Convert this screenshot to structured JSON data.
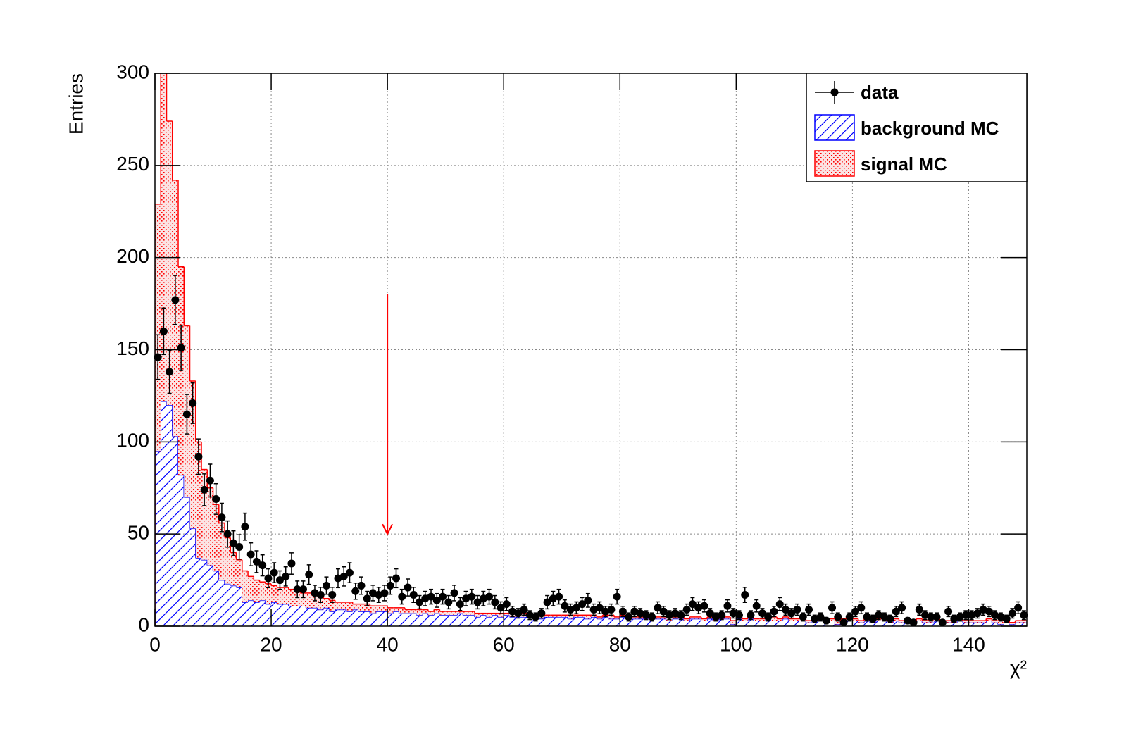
{
  "chart_data": {
    "type": "histogram",
    "x_label": "χ²",
    "y_label": "Entries",
    "xlim": [
      0,
      150
    ],
    "ylim": [
      0,
      300
    ],
    "xticks": [
      0,
      20,
      40,
      60,
      80,
      100,
      120,
      140
    ],
    "yticks": [
      0,
      50,
      100,
      150,
      200,
      250,
      300
    ],
    "grid": true,
    "legend": "top-right",
    "bins": [
      0,
      1,
      2,
      3,
      4,
      5,
      6,
      7,
      8,
      9,
      10,
      11,
      12,
      13,
      14,
      15,
      16,
      17,
      18,
      19,
      20,
      21,
      22,
      23,
      24,
      25,
      26,
      27,
      28,
      29,
      30,
      31,
      32,
      33,
      34,
      35,
      36,
      37,
      38,
      39,
      40,
      41,
      42,
      43,
      44,
      45,
      46,
      47,
      48,
      49,
      50,
      51,
      52,
      53,
      54,
      55,
      56,
      57,
      58,
      59,
      60,
      61,
      62,
      63,
      64,
      65,
      66,
      67,
      68,
      69,
      70,
      71,
      72,
      73,
      74,
      75,
      76,
      77,
      78,
      79,
      80,
      81,
      82,
      83,
      84,
      85,
      86,
      87,
      88,
      89,
      90,
      91,
      92,
      93,
      94,
      95,
      96,
      97,
      98,
      99,
      100,
      101,
      102,
      103,
      104,
      105,
      106,
      107,
      108,
      109,
      110,
      111,
      112,
      113,
      114,
      115,
      116,
      117,
      118,
      119,
      120,
      121,
      122,
      123,
      124,
      125,
      126,
      127,
      128,
      129,
      130,
      131,
      132,
      133,
      134,
      135,
      136,
      137,
      138,
      139,
      140,
      141,
      142,
      143,
      144,
      145,
      146,
      147,
      148,
      149,
      150
    ],
    "series": [
      {
        "name": "background MC",
        "color": "#0000ff",
        "fill": "hatch",
        "values": [
          95,
          122,
          120,
          103,
          82,
          70,
          53,
          37,
          36,
          33,
          30,
          25,
          23,
          22,
          21,
          13,
          14,
          13,
          14,
          12,
          13,
          12,
          12,
          11,
          11,
          11,
          10,
          10,
          9,
          10,
          8,
          9,
          9,
          8,
          9,
          8,
          8,
          7,
          8,
          8,
          7,
          8,
          7,
          7,
          7,
          6,
          7,
          6,
          7,
          6,
          6,
          6,
          7,
          6,
          6,
          5,
          6,
          5,
          6,
          5,
          6,
          5,
          5,
          5,
          5,
          5,
          4,
          5,
          5,
          5,
          5,
          4,
          5,
          5,
          4,
          5,
          4,
          5,
          4,
          4,
          5,
          4,
          4,
          4,
          4,
          4,
          4,
          4,
          3,
          4,
          4,
          3,
          4,
          4,
          3,
          4,
          3,
          4,
          4,
          1,
          4,
          3,
          4,
          3,
          3,
          4,
          3,
          3,
          4,
          3,
          3,
          3,
          2,
          3,
          3,
          3,
          3,
          1,
          3,
          3,
          3,
          2,
          3,
          2,
          3,
          3,
          2,
          3,
          2,
          3,
          2,
          3,
          2,
          2,
          3,
          1,
          2,
          2,
          3,
          2,
          2,
          2,
          2,
          3,
          2,
          1,
          2,
          1,
          2,
          2
        ]
      },
      {
        "name": "signal MC",
        "color": "#ff0000",
        "fill": "dots",
        "values": [
          134,
          258,
          154,
          139,
          113,
          93,
          80,
          63,
          49,
          42,
          36,
          31,
          25,
          18,
          15,
          17,
          13,
          12,
          10,
          11,
          9,
          9,
          9,
          9,
          8,
          7,
          8,
          7,
          7,
          5,
          6,
          4,
          4,
          5,
          3,
          4,
          4,
          4,
          3,
          3,
          3,
          2,
          3,
          2,
          2,
          3,
          2,
          2,
          2,
          2,
          2,
          2,
          1,
          2,
          2,
          2,
          1,
          2,
          1,
          2,
          1,
          2,
          1,
          2,
          1,
          1,
          2,
          1,
          1,
          1,
          1,
          2,
          1,
          1,
          2,
          1,
          1,
          1,
          2,
          1,
          1,
          1,
          1,
          1,
          1,
          1,
          1,
          1,
          2,
          1,
          1,
          1,
          1,
          1,
          1,
          1,
          1,
          1,
          1,
          2,
          1,
          1,
          1,
          1,
          1,
          1,
          2,
          1,
          1,
          1,
          1,
          1,
          1,
          1,
          1,
          1,
          1,
          2,
          1,
          1,
          1,
          1,
          1,
          1,
          1,
          1,
          1,
          1,
          1,
          1,
          1,
          1,
          1,
          2,
          1,
          1,
          1,
          1,
          1,
          1,
          1,
          1,
          1,
          1,
          1,
          2,
          1,
          1,
          1,
          1
        ]
      }
    ],
    "data": {
      "name": "data",
      "color": "#000000",
      "values": [
        146,
        160,
        138,
        177,
        151,
        115,
        121,
        92,
        74,
        79,
        69,
        59,
        50,
        45,
        43,
        54,
        39,
        35,
        33,
        26,
        29,
        25,
        27,
        34,
        20,
        20,
        28,
        18,
        17,
        22,
        17,
        26,
        27,
        29,
        19,
        22,
        15,
        18,
        17,
        18,
        22,
        26,
        16,
        21,
        17,
        13,
        15,
        16,
        14,
        16,
        13,
        18,
        12,
        15,
        16,
        13,
        15,
        16,
        13,
        10,
        12,
        8,
        7,
        9,
        6,
        5,
        7,
        13,
        15,
        16,
        11,
        9,
        10,
        12,
        14,
        9,
        10,
        8,
        9,
        16,
        8,
        5,
        8,
        7,
        6,
        5,
        10,
        8,
        6,
        7,
        6,
        9,
        12,
        10,
        11,
        7,
        5,
        6,
        11,
        7,
        6,
        17,
        6,
        11,
        7,
        5,
        8,
        12,
        9,
        7,
        9,
        5,
        9,
        4,
        5,
        3,
        10,
        5,
        2,
        5,
        8,
        10,
        5,
        4,
        6,
        5,
        4,
        8,
        10,
        3,
        2,
        9,
        6,
        5,
        5,
        2,
        8,
        4,
        5,
        6,
        6,
        7,
        9,
        8,
        6,
        5,
        4,
        7,
        10,
        6
      ],
      "errors": [
        12.1,
        12.6,
        11.7,
        13.3,
        12.3,
        10.7,
        11,
        9.6,
        8.6,
        8.9,
        8.3,
        7.7,
        7.1,
        6.7,
        6.6,
        7.3,
        6.2,
        5.9,
        5.7,
        5.1,
        5.4,
        5,
        5.2,
        5.8,
        4.5,
        4.5,
        5.3,
        4.2,
        4.1,
        4.7,
        4.1,
        5.1,
        5.2,
        5.4,
        4.4,
        4.7,
        3.9,
        4.2,
        4.1,
        4.2,
        4.7,
        5.1,
        4,
        4.6,
        4.1,
        3.6,
        3.9,
        4,
        3.7,
        4,
        3.6,
        4.2,
        3.5,
        3.9,
        4,
        3.6,
        3.9,
        4,
        3.6,
        3.2,
        3.5,
        2.8,
        2.6,
        3,
        2.4,
        2.2,
        2.6,
        3.6,
        3.9,
        4,
        3.3,
        3,
        3.2,
        3.5,
        3.7,
        3,
        3.2,
        2.8,
        3,
        4,
        2.8,
        2.2,
        2.8,
        2.6,
        2.4,
        2.2,
        3.2,
        2.8,
        2.4,
        2.6,
        2.4,
        3,
        3.5,
        3.2,
        3.3,
        2.6,
        2.2,
        2.4,
        3.3,
        2.6,
        2.4,
        4.1,
        2.4,
        3.3,
        2.6,
        2.2,
        2.8,
        3.5,
        3,
        2.6,
        3,
        2.2,
        3,
        2,
        2.2,
        1.7,
        3.2,
        2.2,
        1.4,
        2.2,
        2.8,
        3.2,
        2.2,
        2,
        2.4,
        2.2,
        2,
        2.8,
        3.2,
        1.7,
        1.4,
        3,
        2.4,
        2.2,
        2.2,
        1.4,
        2.8,
        2,
        2.2,
        2.4,
        2.4,
        2.6,
        3,
        2.8,
        2.4,
        2.2,
        2,
        2.6,
        3.2,
        2.4
      ]
    },
    "arrow": {
      "color": "#ff0000",
      "x": 40,
      "y_start": 180,
      "y_end": 50
    }
  }
}
